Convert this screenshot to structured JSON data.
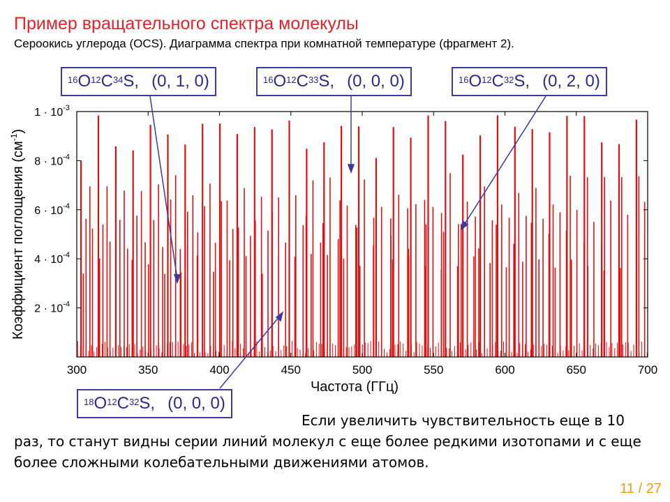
{
  "slide": {
    "title": "Пример вращательного спектра молекулы",
    "subtitle": "Сероокись углерода (OCS).  Диаграмма спектра при комнатной температуре (фрагмент 2).",
    "note": "Если увеличить чувствительность еще в 10 раз, то станут видны серии линий молекул с еще более редкими изотопами и с еще более сложными колебательными движениями атомов.",
    "page_current": "11",
    "page_sep": "/",
    "page_total": "27"
  },
  "annotations": [
    {
      "m1": "16",
      "a": "O",
      "m2": "12",
      "b": "C",
      "m3": "34",
      "c": "S,",
      "state": "(0, 1, 0)"
    },
    {
      "m1": "16",
      "a": "O",
      "m2": "12",
      "b": "C",
      "m3": "33",
      "c": "S,",
      "state": "(0, 0, 0)"
    },
    {
      "m1": "16",
      "a": "O",
      "m2": "12",
      "b": "C",
      "m3": "32",
      "c": "S,",
      "state": "(0, 2, 0)"
    },
    {
      "m1": "18",
      "a": "O",
      "m2": "12",
      "b": "C",
      "m3": "32",
      "c": "S,",
      "state": "(0, 0, 0)"
    }
  ],
  "chart_data": {
    "type": "line",
    "xlabel": "Частота (ГГц)",
    "ylabel_main": "Коэффициент поглощения  (см",
    "ylabel_sup": "-1",
    "ylabel_end": ")",
    "xlim": [
      300,
      700
    ],
    "ylim": [
      0,
      0.001
    ],
    "xticks": [
      "300",
      "350",
      "400",
      "450",
      "500",
      "550",
      "600",
      "650",
      "700"
    ],
    "yticks": [
      {
        "value": 0.0002,
        "mant": "2 · 10",
        "exp": "-4"
      },
      {
        "value": 0.0004,
        "mant": "4 · 10",
        "exp": "-4"
      },
      {
        "value": 0.0006,
        "mant": "6 · 10",
        "exp": "-4"
      },
      {
        "value": 0.0008,
        "mant": "8 · 10",
        "exp": "-4"
      },
      {
        "value": 0.001,
        "mant": "1 · 10",
        "exp": "-3"
      }
    ],
    "line_color": "#e01010",
    "series": [
      {
        "label_ref": "main",
        "spacing_ghz": 12.16,
        "start_ghz": 303.0,
        "peak": 0.001
      },
      {
        "label_ref": "16O12C34S (0,1,0)",
        "spacing_ghz": 11.86,
        "start_ghz": 306.5,
        "peak": 0.00065
      },
      {
        "label_ref": "16O12C33S (0,0,0)",
        "spacing_ghz": 12.02,
        "start_ghz": 309.2,
        "peak": 0.00075
      },
      {
        "label_ref": "16O12C32S (0,2,0)",
        "spacing_ghz": 12.3,
        "start_ghz": 311.0,
        "peak": 0.00055
      },
      {
        "label_ref": "18O12C32S (0,0,0)",
        "spacing_ghz": 11.4,
        "start_ghz": 304.6,
        "peak": 0.00042
      }
    ]
  }
}
